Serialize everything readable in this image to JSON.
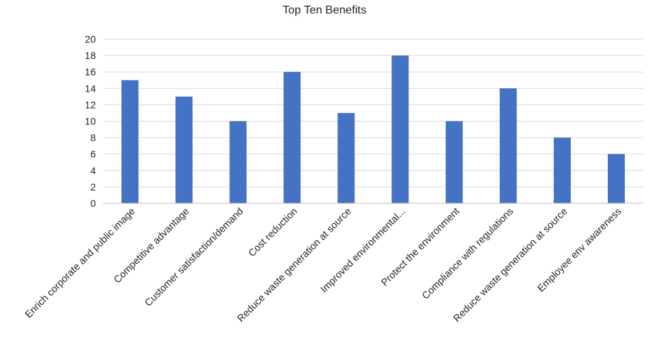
{
  "chart_data": {
    "type": "bar",
    "title": "Top Ten Benefits",
    "xlabel": "",
    "ylabel": "",
    "ylim": [
      0,
      20
    ],
    "yticks": [
      0,
      2,
      4,
      6,
      8,
      10,
      12,
      14,
      16,
      18,
      20
    ],
    "grid": true,
    "legend": "none",
    "bar_color": "#4472C4",
    "grid_color": "#D9D9D9",
    "categories": [
      "Enrich corporate and public image",
      "Competitive advantage",
      "Customer satisfaction/demand",
      "Cost reduction",
      "Reduce waste generation at source",
      "Improved environmental...",
      "Protect the environment",
      "Compliance with regulations",
      "Reduce waste generation at source",
      "Employee env awareness"
    ],
    "values": [
      15,
      13,
      10,
      16,
      11,
      18,
      10,
      14,
      8,
      6
    ]
  }
}
